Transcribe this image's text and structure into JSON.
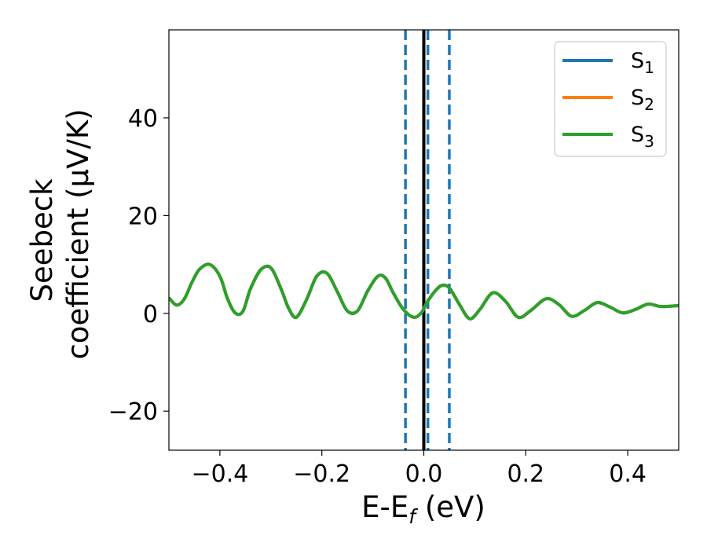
{
  "chart_data": {
    "type": "line",
    "xlabel": {
      "main": "E-E",
      "sub": "f",
      "unit": " (eV)"
    },
    "ylabel": {
      "line1": "Seebeck",
      "line2": "coefficient  (μV/K)"
    },
    "xlim": [
      -0.5,
      0.5
    ],
    "ylim": [
      -28,
      58
    ],
    "xticks": [
      -0.4,
      -0.2,
      0.0,
      0.2,
      0.4
    ],
    "xtick_labels": [
      "−0.4",
      "−0.2",
      "0.0",
      "0.2",
      "0.4"
    ],
    "yticks": [
      -20,
      0,
      20,
      40
    ],
    "ytick_labels": [
      "−20",
      "0",
      "20",
      "40"
    ],
    "grid": false,
    "legend_position": "top-right",
    "vlines": [
      {
        "x": 0.0,
        "style": "solid",
        "color": "#000000"
      },
      {
        "x": -0.036,
        "style": "dashed",
        "color": "#1f77b4"
      },
      {
        "x": 0.008,
        "style": "dashed",
        "color": "#1f77b4"
      },
      {
        "x": 0.05,
        "style": "dashed",
        "color": "#1f77b4"
      }
    ],
    "series": [
      {
        "name": "S",
        "sub": "1",
        "color": "#1f77b4",
        "x": [
          -0.5,
          -0.485,
          -0.47,
          -0.455,
          -0.44,
          -0.42,
          -0.4,
          -0.385,
          -0.37,
          -0.355,
          -0.34,
          -0.32,
          -0.3,
          -0.28,
          -0.265,
          -0.25,
          -0.23,
          -0.21,
          -0.19,
          -0.17,
          -0.15,
          -0.13,
          -0.11,
          -0.09,
          -0.075,
          -0.06,
          -0.04,
          -0.02,
          -0.005,
          0.005,
          0.02,
          0.035,
          0.05,
          0.07,
          0.09,
          0.11,
          0.135,
          0.16,
          0.185,
          0.21,
          0.24,
          0.265,
          0.29,
          0.315,
          0.34,
          0.365,
          0.39,
          0.415,
          0.44,
          0.465,
          0.5
        ],
        "y": [
          3.2,
          1.7,
          2.9,
          6.3,
          9.0,
          10.0,
          7.6,
          3.0,
          0.1,
          0.4,
          5.0,
          8.9,
          9.3,
          5.0,
          1.0,
          -0.8,
          2.8,
          7.6,
          8.2,
          4.5,
          0.5,
          0.5,
          4.6,
          7.6,
          7.2,
          4.2,
          0.8,
          -0.8,
          0.1,
          2.0,
          4.3,
          5.7,
          5.2,
          1.8,
          -1.1,
          0.8,
          4.2,
          2.5,
          -0.8,
          0.6,
          3.0,
          1.8,
          -0.6,
          0.6,
          2.2,
          1.3,
          0.1,
          0.8,
          1.9,
          1.4,
          1.6
        ]
      },
      {
        "name": "S",
        "sub": "2",
        "color": "#ff7f0e",
        "x": [
          -0.5,
          -0.485,
          -0.47,
          -0.455,
          -0.44,
          -0.42,
          -0.4,
          -0.385,
          -0.37,
          -0.355,
          -0.34,
          -0.32,
          -0.3,
          -0.28,
          -0.265,
          -0.25,
          -0.23,
          -0.21,
          -0.19,
          -0.17,
          -0.15,
          -0.13,
          -0.11,
          -0.09,
          -0.075,
          -0.06,
          -0.04,
          -0.02,
          -0.005,
          0.005,
          0.02,
          0.035,
          0.05,
          0.07,
          0.09,
          0.11,
          0.135,
          0.16,
          0.185,
          0.21,
          0.24,
          0.265,
          0.29,
          0.315,
          0.34,
          0.365,
          0.39,
          0.415,
          0.44,
          0.465,
          0.5
        ],
        "y": [
          3.2,
          1.7,
          2.9,
          6.3,
          9.0,
          10.0,
          7.6,
          3.0,
          0.1,
          0.4,
          5.0,
          8.9,
          9.3,
          5.0,
          1.0,
          -0.8,
          2.8,
          7.6,
          8.2,
          4.5,
          0.5,
          0.5,
          4.6,
          7.6,
          7.2,
          4.2,
          0.8,
          -0.8,
          0.1,
          2.0,
          4.3,
          5.7,
          5.2,
          1.8,
          -1.1,
          0.8,
          4.2,
          2.5,
          -0.8,
          0.6,
          3.0,
          1.8,
          -0.6,
          0.6,
          2.2,
          1.3,
          0.1,
          0.8,
          1.9,
          1.4,
          1.6
        ]
      },
      {
        "name": "S",
        "sub": "3",
        "color": "#2ca02c",
        "x": [
          -0.5,
          -0.485,
          -0.47,
          -0.455,
          -0.44,
          -0.42,
          -0.4,
          -0.385,
          -0.37,
          -0.355,
          -0.34,
          -0.32,
          -0.3,
          -0.28,
          -0.265,
          -0.25,
          -0.23,
          -0.21,
          -0.19,
          -0.17,
          -0.15,
          -0.13,
          -0.11,
          -0.09,
          -0.075,
          -0.06,
          -0.04,
          -0.02,
          -0.005,
          0.005,
          0.02,
          0.035,
          0.05,
          0.07,
          0.09,
          0.11,
          0.135,
          0.16,
          0.185,
          0.21,
          0.24,
          0.265,
          0.29,
          0.315,
          0.34,
          0.365,
          0.39,
          0.415,
          0.44,
          0.465,
          0.5
        ],
        "y": [
          3.2,
          1.7,
          2.9,
          6.3,
          9.0,
          10.0,
          7.6,
          3.0,
          0.1,
          0.4,
          5.0,
          8.9,
          9.3,
          5.0,
          1.0,
          -0.8,
          2.8,
          7.6,
          8.2,
          4.5,
          0.5,
          0.5,
          4.6,
          7.6,
          7.2,
          4.2,
          0.8,
          -0.8,
          0.1,
          2.0,
          4.3,
          5.7,
          5.2,
          1.8,
          -1.1,
          0.8,
          4.2,
          2.5,
          -0.8,
          0.6,
          3.0,
          1.8,
          -0.6,
          0.6,
          2.2,
          1.3,
          0.1,
          0.8,
          1.9,
          1.4,
          1.6
        ]
      }
    ]
  }
}
